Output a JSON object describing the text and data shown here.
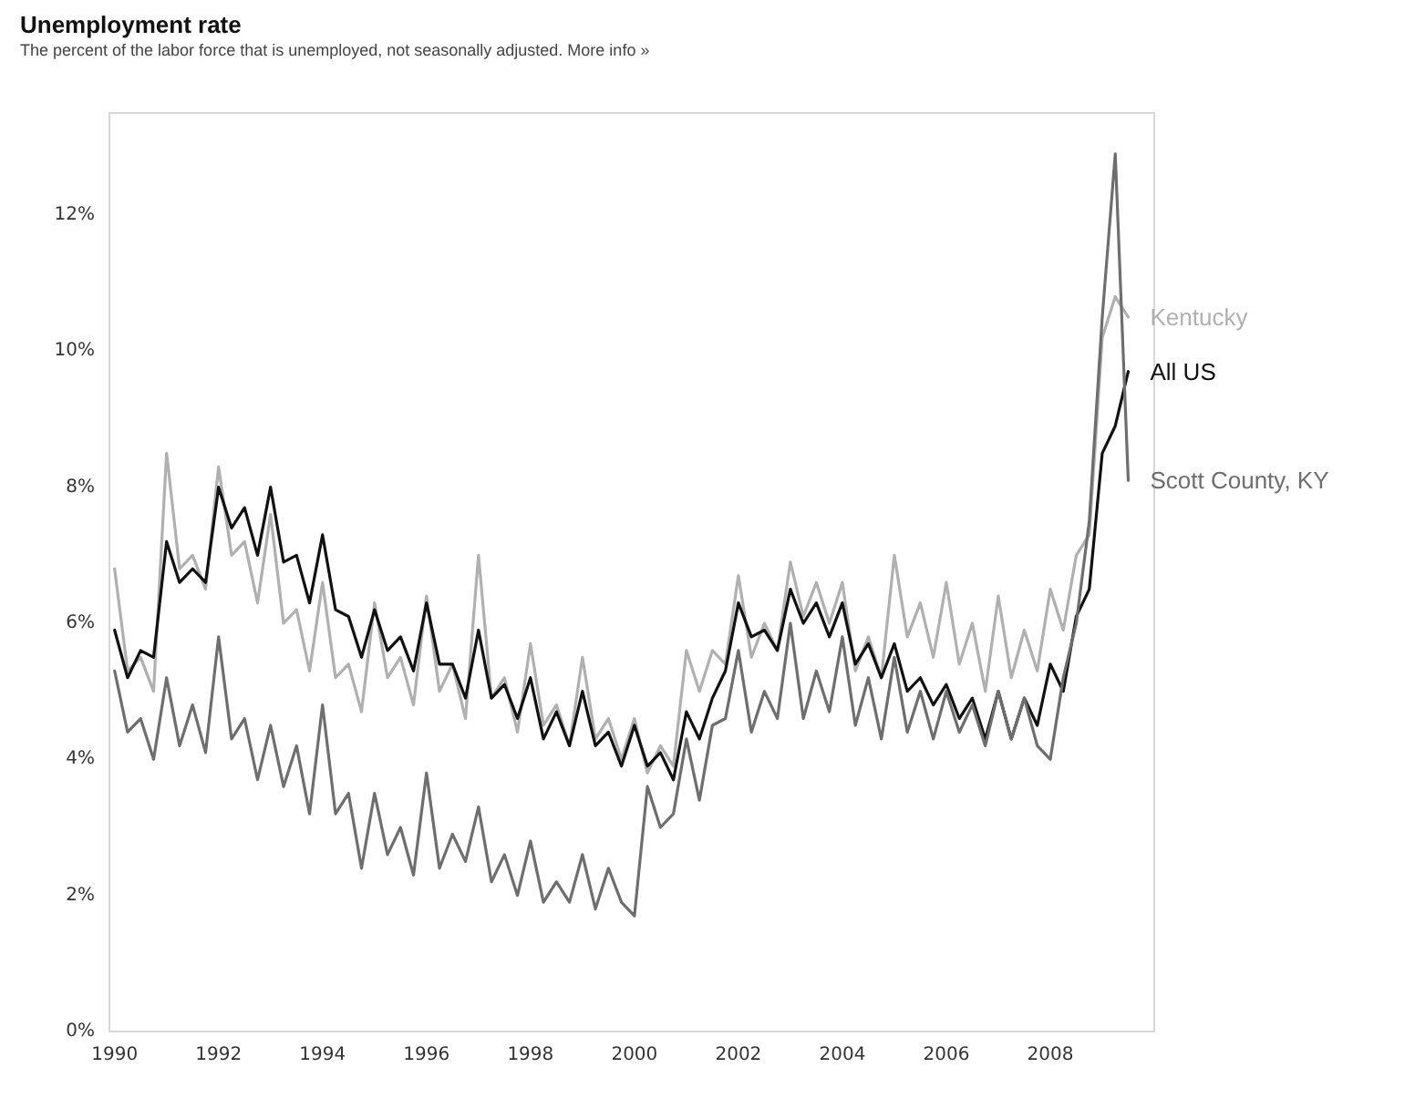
{
  "chart_data": {
    "type": "line",
    "title": "Unemployment rate",
    "subtitle": "The percent of the labor force that is unemployed, not seasonally adjusted. More info »",
    "x": [
      1990,
      1990.25,
      1990.5,
      1990.75,
      1991,
      1991.25,
      1991.5,
      1991.75,
      1992,
      1992.25,
      1992.5,
      1992.75,
      1993,
      1993.25,
      1993.5,
      1993.75,
      1994,
      1994.25,
      1994.5,
      1994.75,
      1995,
      1995.25,
      1995.5,
      1995.75,
      1996,
      1996.25,
      1996.5,
      1996.75,
      1997,
      1997.25,
      1997.5,
      1997.75,
      1998,
      1998.25,
      1998.5,
      1998.75,
      1999,
      1999.25,
      1999.5,
      1999.75,
      2000,
      2000.25,
      2000.5,
      2000.75,
      2001,
      2001.25,
      2001.5,
      2001.75,
      2002,
      2002.25,
      2002.5,
      2002.75,
      2003,
      2003.25,
      2003.5,
      2003.75,
      2004,
      2004.25,
      2004.5,
      2004.75,
      2005,
      2005.25,
      2005.5,
      2005.75,
      2006,
      2006.25,
      2006.5,
      2006.75,
      2007,
      2007.25,
      2007.5,
      2007.75,
      2008,
      2008.25,
      2008.5,
      2008.75,
      2009,
      2009.25,
      2009.5
    ],
    "series": [
      {
        "name": "Kentucky",
        "color": "#b0b0b0",
        "values": [
          6.8,
          5.3,
          5.5,
          5.0,
          8.5,
          6.8,
          7.0,
          6.5,
          8.3,
          7.0,
          7.2,
          6.3,
          7.6,
          6.0,
          6.2,
          5.3,
          6.6,
          5.2,
          5.4,
          4.7,
          6.3,
          5.2,
          5.5,
          4.8,
          6.4,
          5.0,
          5.4,
          4.6,
          7.0,
          4.9,
          5.2,
          4.4,
          5.7,
          4.5,
          4.8,
          4.2,
          5.5,
          4.3,
          4.6,
          4.0,
          4.6,
          3.8,
          4.2,
          3.9,
          5.6,
          5.0,
          5.6,
          5.4,
          6.7,
          5.5,
          6.0,
          5.6,
          6.9,
          6.1,
          6.6,
          6.0,
          6.6,
          5.3,
          5.8,
          5.2,
          7.0,
          5.8,
          6.3,
          5.5,
          6.6,
          5.4,
          6.0,
          5.0,
          6.4,
          5.2,
          5.9,
          5.3,
          6.5,
          5.9,
          7.0,
          7.3,
          10.2,
          10.8,
          10.5
        ]
      },
      {
        "name": "All US",
        "color": "#111111",
        "values": [
          5.9,
          5.2,
          5.6,
          5.5,
          7.2,
          6.6,
          6.8,
          6.6,
          8.0,
          7.4,
          7.7,
          7.0,
          8.0,
          6.9,
          7.0,
          6.3,
          7.3,
          6.2,
          6.1,
          5.5,
          6.2,
          5.6,
          5.8,
          5.3,
          6.3,
          5.4,
          5.4,
          4.9,
          5.9,
          4.9,
          5.1,
          4.6,
          5.2,
          4.3,
          4.7,
          4.2,
          5.0,
          4.2,
          4.4,
          3.9,
          4.5,
          3.9,
          4.1,
          3.7,
          4.7,
          4.3,
          4.9,
          5.3,
          6.3,
          5.8,
          5.9,
          5.6,
          6.5,
          6.0,
          6.3,
          5.8,
          6.3,
          5.4,
          5.7,
          5.2,
          5.7,
          5.0,
          5.2,
          4.8,
          5.1,
          4.6,
          4.9,
          4.3,
          5.0,
          4.3,
          4.9,
          4.5,
          5.4,
          5.0,
          6.1,
          6.5,
          8.5,
          8.9,
          9.7
        ]
      },
      {
        "name": "Scott County, KY",
        "color": "#6e6e6e",
        "values": [
          5.3,
          4.4,
          4.6,
          4.0,
          5.2,
          4.2,
          4.8,
          4.1,
          5.8,
          4.3,
          4.6,
          3.7,
          4.5,
          3.6,
          4.2,
          3.2,
          4.8,
          3.2,
          3.5,
          2.4,
          3.5,
          2.6,
          3.0,
          2.3,
          3.8,
          2.4,
          2.9,
          2.5,
          3.3,
          2.2,
          2.6,
          2.0,
          2.8,
          1.9,
          2.2,
          1.9,
          2.6,
          1.8,
          2.4,
          1.9,
          1.7,
          3.6,
          3.0,
          3.2,
          4.3,
          3.4,
          4.5,
          4.6,
          5.6,
          4.4,
          5.0,
          4.6,
          6.0,
          4.6,
          5.3,
          4.7,
          5.8,
          4.5,
          5.2,
          4.3,
          5.5,
          4.4,
          5.0,
          4.3,
          5.0,
          4.4,
          4.8,
          4.2,
          5.0,
          4.3,
          4.9,
          4.2,
          4.0,
          5.2,
          6.0,
          7.5,
          10.5,
          12.9,
          8.1
        ]
      }
    ],
    "xlim": [
      1989.9,
      2010
    ],
    "xticks": [
      1990,
      1992,
      1994,
      1996,
      1998,
      2000,
      2002,
      2004,
      2006,
      2008
    ],
    "ylim": [
      0,
      13.5
    ],
    "yticks": [
      {
        "value": 0,
        "label": "0%"
      },
      {
        "value": 2,
        "label": "2%"
      },
      {
        "value": 4,
        "label": "4%"
      },
      {
        "value": 6,
        "label": "6%"
      },
      {
        "value": 8,
        "label": "8%"
      },
      {
        "value": 10,
        "label": "10%"
      },
      {
        "value": 12,
        "label": "12%"
      }
    ],
    "grid": false,
    "legend": false,
    "marker": "none",
    "line_style": "solid"
  }
}
